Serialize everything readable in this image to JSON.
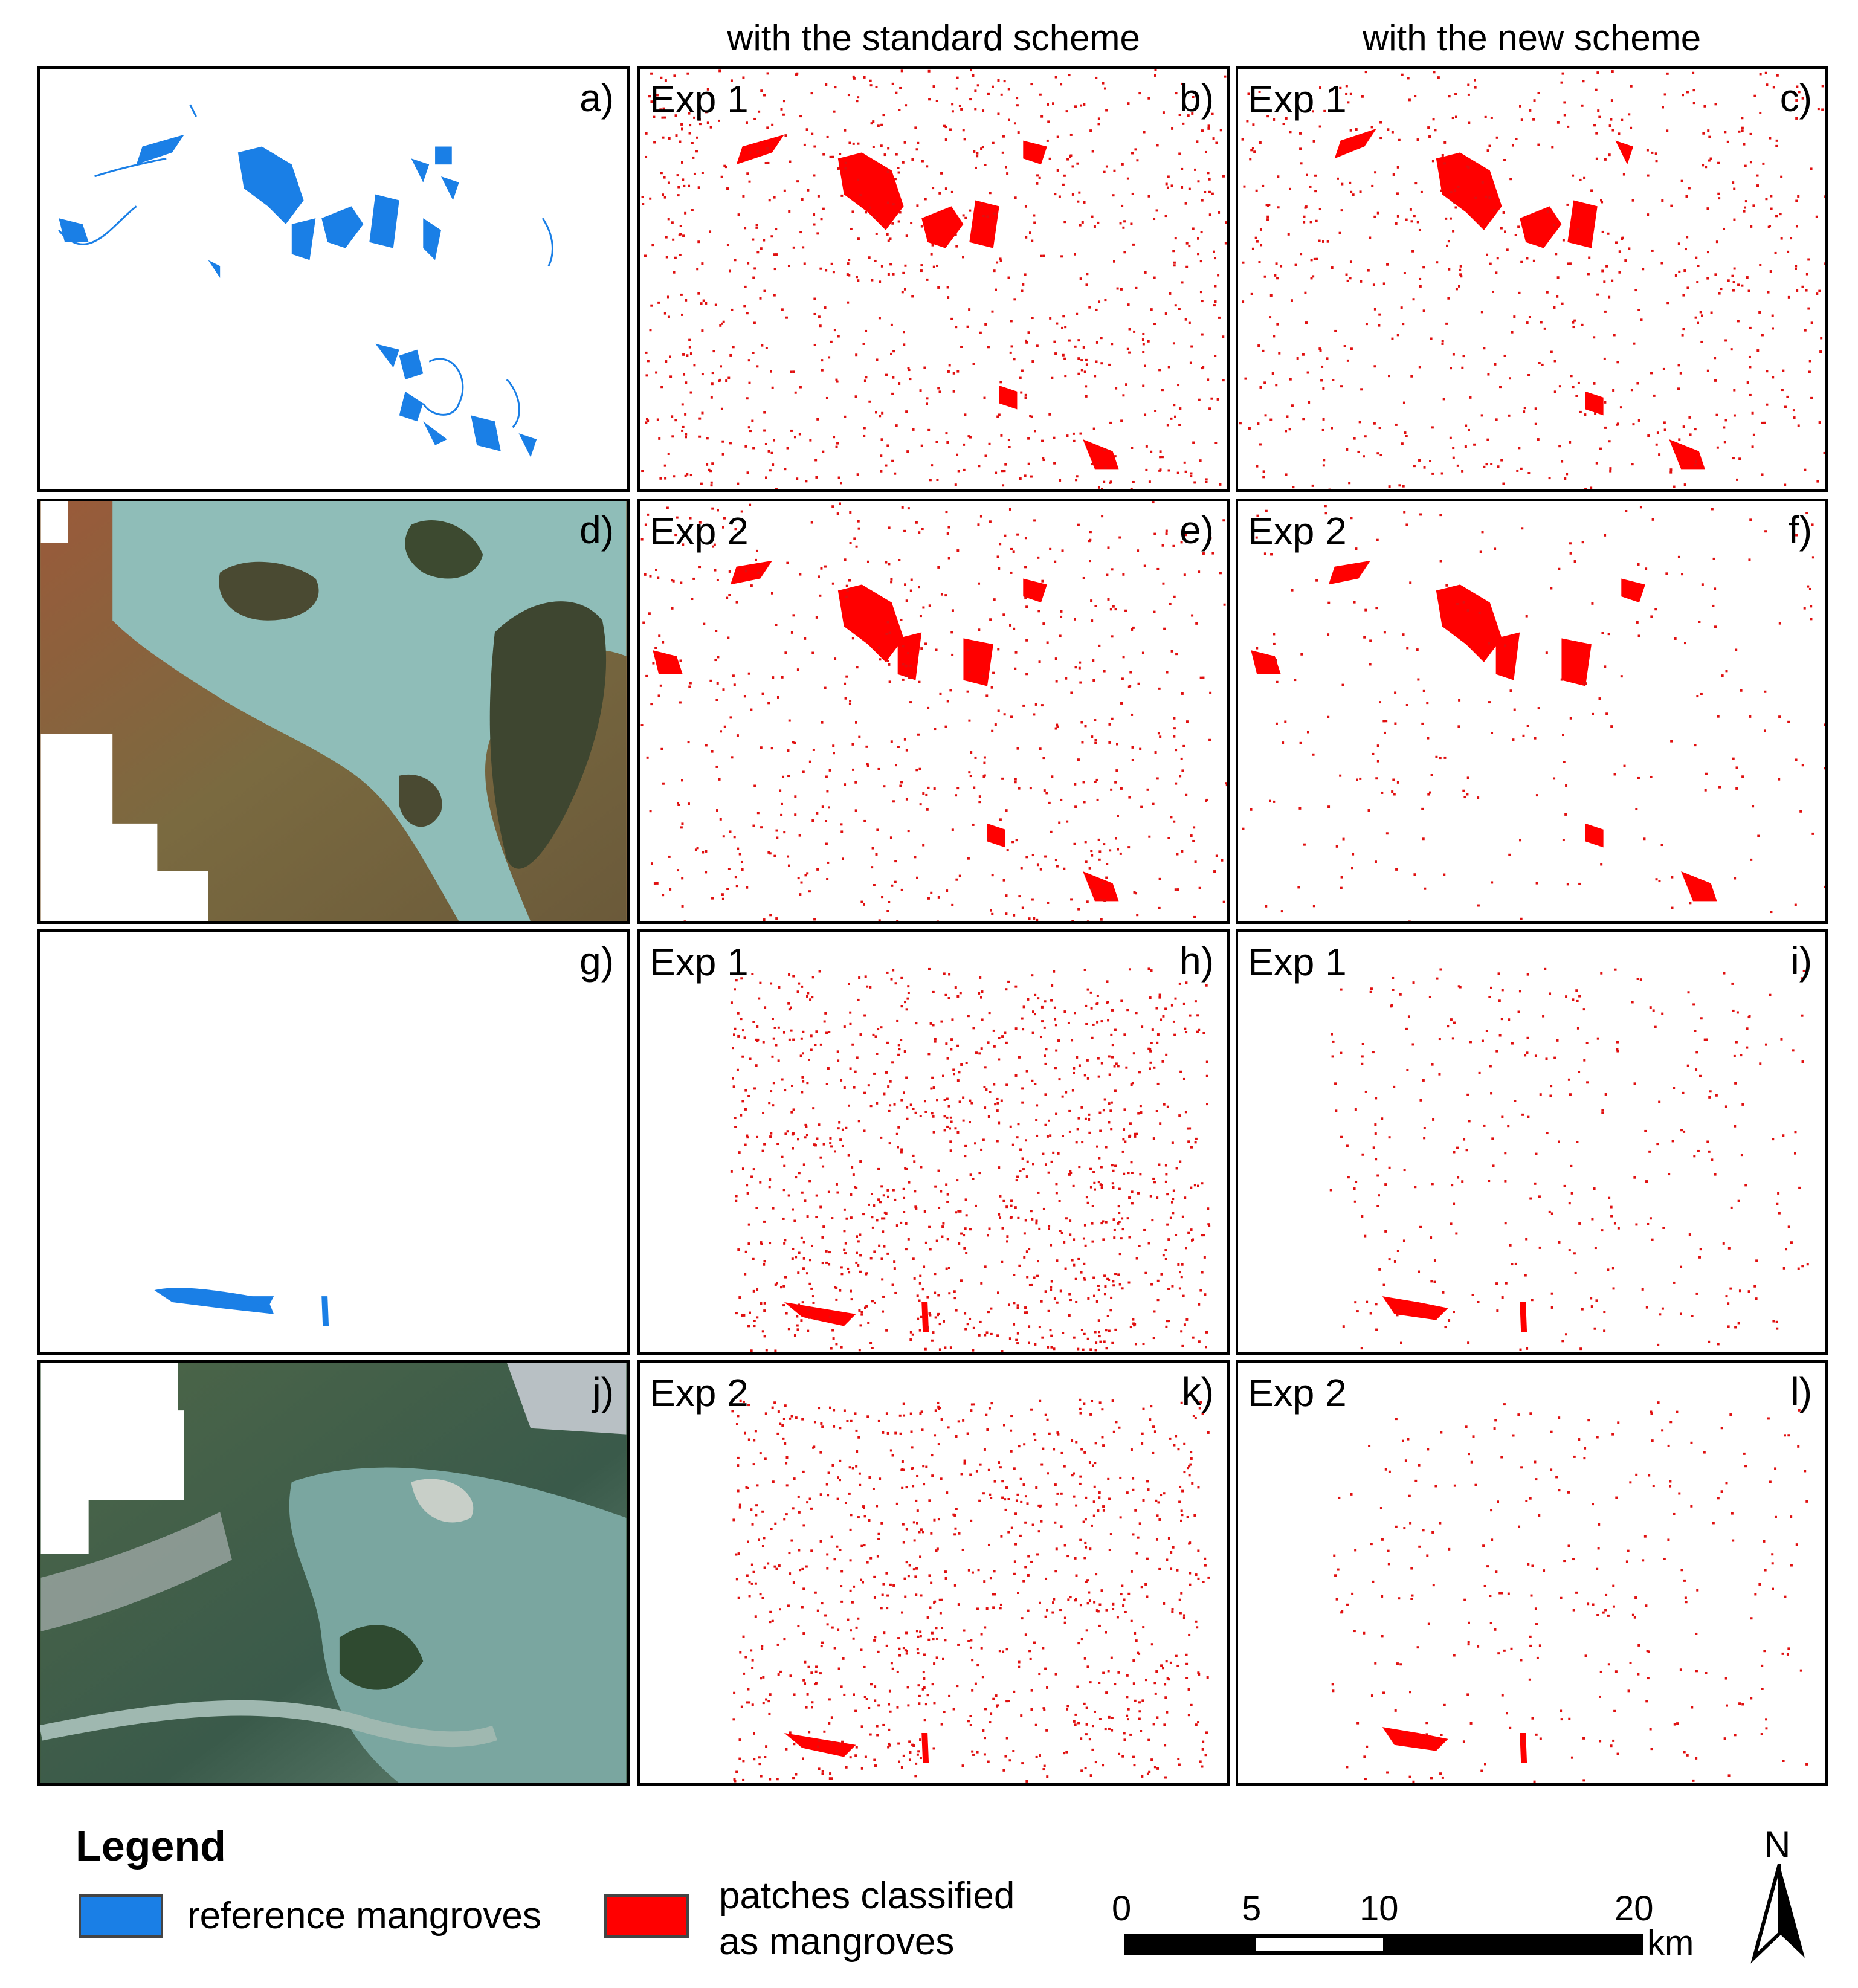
{
  "headers": {
    "standard": "with the standard scheme",
    "new": "with the new scheme"
  },
  "panels": {
    "a": {
      "label": "a)",
      "exp": ""
    },
    "b": {
      "label": "b)",
      "exp": "Exp 1"
    },
    "c": {
      "label": "c)",
      "exp": "Exp 1"
    },
    "d": {
      "label": "d)",
      "exp": ""
    },
    "e": {
      "label": "e)",
      "exp": "Exp 2"
    },
    "f": {
      "label": "f)",
      "exp": "Exp 2"
    },
    "g": {
      "label": "g)",
      "exp": ""
    },
    "h": {
      "label": "h)",
      "exp": "Exp 1"
    },
    "i": {
      "label": "i)",
      "exp": "Exp 1"
    },
    "j": {
      "label": "j)",
      "exp": ""
    },
    "k": {
      "label": "k)",
      "exp": "Exp 2"
    },
    "l": {
      "label": "l)",
      "exp": "Exp 2"
    }
  },
  "legend": {
    "title": "Legend",
    "reference_label": "reference mangroves",
    "classified_line1": "patches classified",
    "classified_line2": "as mangroves",
    "reference_color": "#1a7fe6",
    "classified_color": "#ff0000"
  },
  "scale_bar": {
    "ticks": [
      "0",
      "5",
      "10",
      "20"
    ],
    "unit": "km"
  },
  "north_arrow": {
    "label": "N"
  }
}
